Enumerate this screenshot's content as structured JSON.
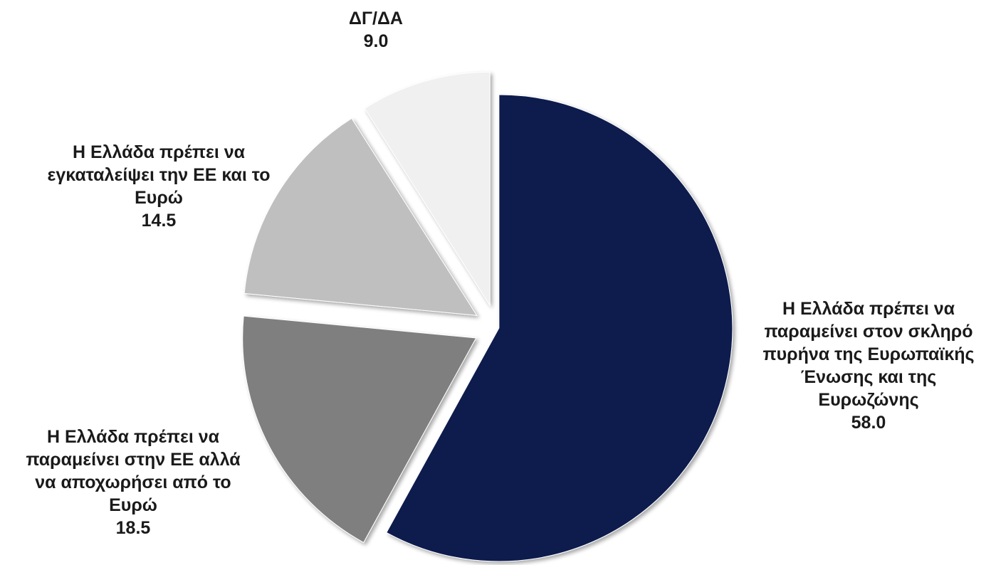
{
  "chart_data": {
    "type": "pie",
    "title": "",
    "slices": [
      {
        "label_lines": [
          "Η Ελλάδα πρέπει να",
          "παραμείνει στον σκληρό",
          "πυρήνα της Ευρωπαϊκής",
          "Ένωσης και της",
          "Ευρωζώνης"
        ],
        "value": 58.0,
        "value_text": "58.0",
        "color": "#0c1a4e"
      },
      {
        "label_lines": [
          "Η Ελλάδα πρέπει να",
          "παραμείνει στην ΕΕ αλλά",
          "να αποχωρήσει από το",
          "Ευρώ"
        ],
        "value": 18.5,
        "value_text": "18.5",
        "color": "#7f7f7f"
      },
      {
        "label_lines": [
          "Η Ελλάδα πρέπει να",
          "εγκαταλείψει την ΕΕ και το",
          "Ευρώ"
        ],
        "value": 14.5,
        "value_text": "14.5",
        "color": "#bfbfbf"
      },
      {
        "label_lines": [
          "ΔΓ/ΔΑ"
        ],
        "value": 9.0,
        "value_text": "9.0",
        "color": "#f0f0f0"
      }
    ],
    "start_angle": "12 o'clock",
    "direction": "clockwise",
    "exploded": true,
    "legend": "none"
  }
}
